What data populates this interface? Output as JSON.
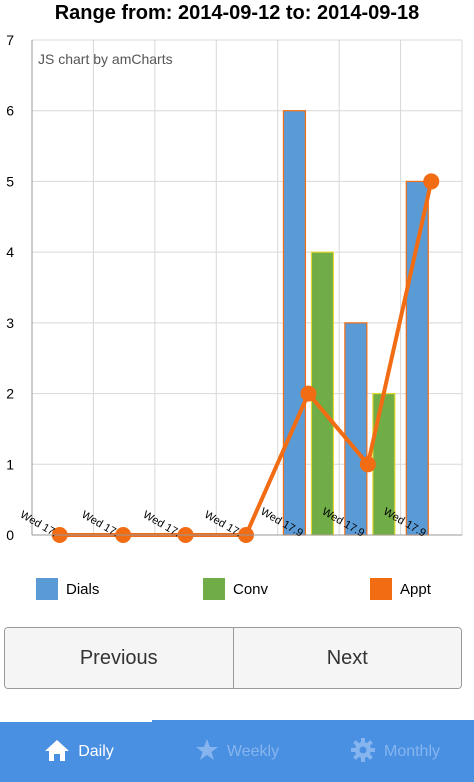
{
  "chart_data": {
    "type": "bar",
    "title": "Range from: 2014-09-12 to: 2014-09-18",
    "watermark": "JS chart by amCharts",
    "categories": [
      "Wed 17.9",
      "Wed 17.9",
      "Wed 17.9",
      "Wed 17.9",
      "Wed 17.9",
      "Wed 17.9",
      "Wed 17.9"
    ],
    "category_tick_labels": [
      "Wed 17.",
      "Wed 17.",
      "Wed 17.",
      "Wed 17.",
      "Wed 17.9",
      "Wed 17.9",
      "Wed 17.9"
    ],
    "ylim": [
      0,
      7
    ],
    "yticks": [
      0,
      1,
      2,
      3,
      4,
      5,
      6,
      7
    ],
    "grid": true,
    "legend_position": "bottom",
    "series": [
      {
        "name": "Dials",
        "type": "bar",
        "color": "#5b9bd5",
        "border": "#f26c14",
        "values": [
          0,
          0,
          0,
          0,
          6,
          3,
          5
        ]
      },
      {
        "name": "Conv",
        "type": "bar",
        "color": "#70ad47",
        "border": "#e6d833",
        "values": [
          0,
          0,
          0,
          0,
          4,
          2,
          0
        ]
      },
      {
        "name": "Appt",
        "type": "line",
        "color": "#f26c14",
        "values": [
          0,
          0,
          0,
          0,
          2,
          1,
          5
        ]
      }
    ]
  },
  "buttons": {
    "previous": "Previous",
    "next": "Next"
  },
  "tabs": [
    {
      "label": "Daily",
      "icon": "home-icon",
      "active": true
    },
    {
      "label": "Weekly",
      "icon": "star-icon",
      "active": false
    },
    {
      "label": "Monthly",
      "icon": "gear-icon",
      "active": false
    }
  ]
}
